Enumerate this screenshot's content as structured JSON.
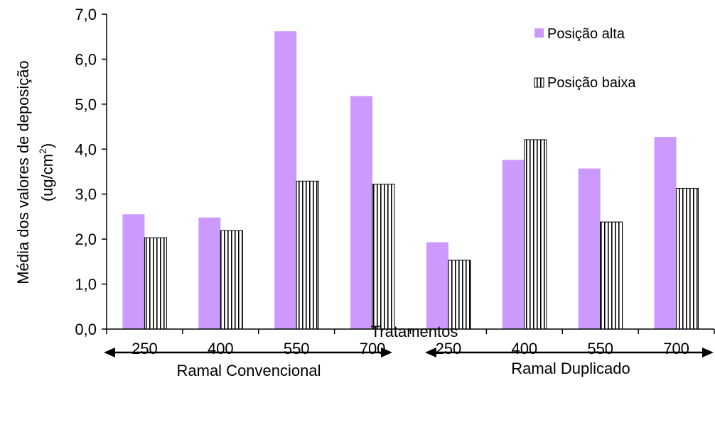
{
  "chart_data": {
    "type": "bar",
    "categories": [
      "250",
      "400",
      "550",
      "700",
      "250",
      "400",
      "550",
      "700"
    ],
    "series": [
      {
        "name": "Posição alta",
        "values": [
          2.55,
          2.48,
          6.62,
          5.18,
          1.93,
          3.76,
          3.57,
          4.27
        ],
        "color": "#cc99ff",
        "pattern": "solid"
      },
      {
        "name": "Posição baixa",
        "values": [
          2.03,
          2.19,
          3.29,
          3.22,
          1.53,
          4.21,
          2.38,
          3.13
        ],
        "color": "#ffffff",
        "pattern": "vertical-stripes"
      }
    ],
    "ylim": [
      0,
      7
    ],
    "yticks": [
      "0,0",
      "1,0",
      "2,0",
      "3,0",
      "4,0",
      "5,0",
      "6,0",
      "7,0"
    ],
    "xlabel": "Tratamentos",
    "ylabel_line1": "Média dos valores de deposição",
    "ylabel_line2_prefix": "(ug/cm",
    "ylabel_line2_sup": "2",
    "ylabel_line2_suffix": ")",
    "groups": [
      {
        "label": "Ramal Convencional",
        "categories": [
          0,
          3
        ]
      },
      {
        "label": "Ramal Duplicado",
        "categories": [
          4,
          7
        ]
      }
    ],
    "legend_position": "top-right",
    "grid": false
  }
}
